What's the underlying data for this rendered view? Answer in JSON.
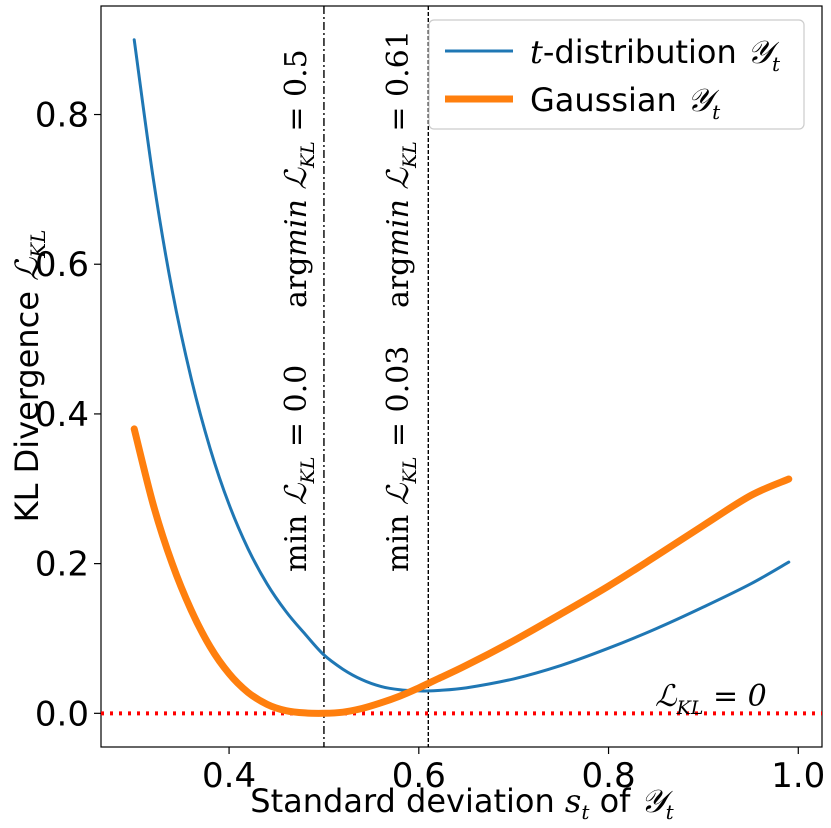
{
  "chart_data": {
    "type": "line",
    "title": "",
    "xlabel": {
      "text": "Standard deviation ",
      "symbol": "s",
      "symbol_sub": "t",
      "mid": " of ",
      "script": "𝒴",
      "script_sub": "t"
    },
    "ylabel": {
      "text": "KL Divergence ",
      "script": "ℒ",
      "script_sub": "KL"
    },
    "xlim": [
      0.265,
      1.025
    ],
    "ylim": [
      -0.045,
      0.945
    ],
    "x_ticks": [
      0.4,
      0.6,
      0.8,
      1.0
    ],
    "x_tick_labels": [
      "0.4",
      "0.6",
      "0.8",
      "1.0"
    ],
    "y_ticks": [
      0.0,
      0.2,
      0.4,
      0.6,
      0.8
    ],
    "y_tick_labels": [
      "0.0",
      "0.2",
      "0.4",
      "0.6",
      "0.8"
    ],
    "grid": false,
    "legend_location": "top-right",
    "series": [
      {
        "name": "t-distribution",
        "legend_symbol": "t",
        "legend_text": "-distribution ",
        "legend_script": "𝒴",
        "legend_script_sub": "t",
        "color": "#1f77b4",
        "x": [
          0.3,
          0.32,
          0.34,
          0.36,
          0.38,
          0.4,
          0.42,
          0.44,
          0.46,
          0.48,
          0.5,
          0.52,
          0.54,
          0.56,
          0.58,
          0.6,
          0.61,
          0.62,
          0.65,
          0.7,
          0.75,
          0.8,
          0.85,
          0.9,
          0.95,
          0.99
        ],
        "y": [
          0.9,
          0.715,
          0.565,
          0.448,
          0.354,
          0.279,
          0.22,
          0.173,
          0.136,
          0.106,
          0.078,
          0.059,
          0.045,
          0.036,
          0.0315,
          0.03,
          0.03,
          0.0305,
          0.034,
          0.046,
          0.064,
          0.087,
          0.113,
          0.142,
          0.173,
          0.202
        ]
      },
      {
        "name": "Gaussian",
        "legend_text": "Gaussian ",
        "legend_script": "𝒴",
        "legend_script_sub": "t",
        "color": "#ff7f0e",
        "x": [
          0.3,
          0.32,
          0.34,
          0.36,
          0.38,
          0.4,
          0.42,
          0.44,
          0.46,
          0.48,
          0.5,
          0.52,
          0.54,
          0.56,
          0.58,
          0.6,
          0.61,
          0.62,
          0.65,
          0.7,
          0.75,
          0.8,
          0.85,
          0.9,
          0.95,
          0.99
        ],
        "y": [
          0.38,
          0.279,
          0.2,
          0.138,
          0.089,
          0.053,
          0.028,
          0.012,
          0.0035,
          0.0005,
          0.0,
          0.0015,
          0.0065,
          0.014,
          0.023,
          0.034,
          0.04,
          0.046,
          0.064,
          0.097,
          0.133,
          0.17,
          0.21,
          0.251,
          0.291,
          0.313
        ]
      }
    ],
    "vlines": [
      {
        "x": 0.5,
        "style": "dashdot"
      },
      {
        "x": 0.61,
        "style": "dashed"
      }
    ],
    "hline": {
      "y": 0.0,
      "color": "#ff0000",
      "style": "dotted"
    },
    "annotations": {
      "argmin_gauss": {
        "op": "arg",
        "op2": "min",
        "script": "ℒ",
        "script_sub": "KL",
        "rest": " = 0.5"
      },
      "min_gauss": {
        "op": "min ",
        "script": "ℒ",
        "script_sub": "KL",
        "rest": " = 0.0"
      },
      "argmin_t": {
        "op": "arg",
        "op2": "min",
        "script": "ℒ",
        "script_sub": "KL",
        "rest": " = 0.61"
      },
      "min_t": {
        "op": "min ",
        "script": "ℒ",
        "script_sub": "KL",
        "rest": " = 0.03"
      },
      "zero_line": {
        "script": "ℒ",
        "script_sub": "KL",
        "rest": " = 0"
      }
    }
  }
}
